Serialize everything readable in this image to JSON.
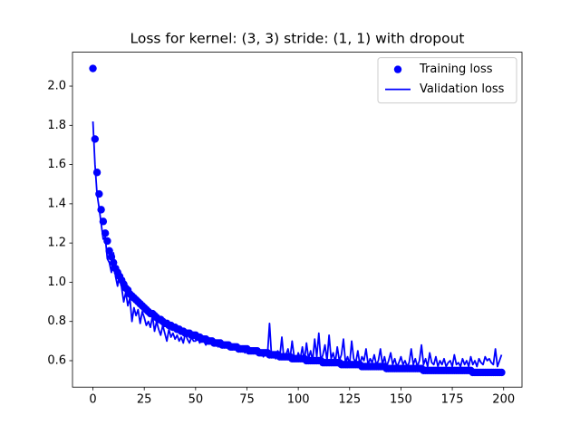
{
  "chart_data": {
    "type": "line",
    "title": "Loss for kernel: (3, 3) stride: (1, 1) with dropout",
    "x": [
      0,
      1,
      2,
      3,
      4,
      5,
      6,
      7,
      8,
      9,
      10,
      11,
      12,
      13,
      14,
      15,
      16,
      17,
      18,
      19,
      20,
      21,
      22,
      23,
      24,
      25,
      26,
      27,
      28,
      29,
      30,
      31,
      32,
      33,
      34,
      35,
      36,
      37,
      38,
      39,
      40,
      41,
      42,
      43,
      44,
      45,
      46,
      47,
      48,
      49,
      50,
      51,
      52,
      53,
      54,
      55,
      56,
      57,
      58,
      59,
      60,
      61,
      62,
      63,
      64,
      65,
      66,
      67,
      68,
      69,
      70,
      71,
      72,
      73,
      74,
      75,
      76,
      77,
      78,
      79,
      80,
      81,
      82,
      83,
      84,
      85,
      86,
      87,
      88,
      89,
      90,
      91,
      92,
      93,
      94,
      95,
      96,
      97,
      98,
      99,
      100,
      101,
      102,
      103,
      104,
      105,
      106,
      107,
      108,
      109,
      110,
      111,
      112,
      113,
      114,
      115,
      116,
      117,
      118,
      119,
      120,
      121,
      122,
      123,
      124,
      125,
      126,
      127,
      128,
      129,
      130,
      131,
      132,
      133,
      134,
      135,
      136,
      137,
      138,
      139,
      140,
      141,
      142,
      143,
      144,
      145,
      146,
      147,
      148,
      149,
      150,
      151,
      152,
      153,
      154,
      155,
      156,
      157,
      158,
      159,
      160,
      161,
      162,
      163,
      164,
      165,
      166,
      167,
      168,
      169,
      170,
      171,
      172,
      173,
      174,
      175,
      176,
      177,
      178,
      179,
      180,
      181,
      182,
      183,
      184,
      185,
      186,
      187,
      188,
      189,
      190,
      191,
      192,
      193,
      194,
      195,
      196,
      197,
      198,
      199
    ],
    "series": [
      {
        "name": "Training loss",
        "color": "#0000ff",
        "mode": "markers",
        "values": [
          2.09,
          1.73,
          1.56,
          1.45,
          1.37,
          1.31,
          1.25,
          1.21,
          1.16,
          1.13,
          1.1,
          1.07,
          1.05,
          1.03,
          1.01,
          0.99,
          0.97,
          0.96,
          0.94,
          0.93,
          0.92,
          0.91,
          0.9,
          0.89,
          0.88,
          0.87,
          0.86,
          0.85,
          0.84,
          0.84,
          0.83,
          0.82,
          0.81,
          0.81,
          0.8,
          0.79,
          0.79,
          0.78,
          0.78,
          0.77,
          0.77,
          0.76,
          0.76,
          0.75,
          0.75,
          0.74,
          0.74,
          0.74,
          0.73,
          0.73,
          0.73,
          0.72,
          0.72,
          0.71,
          0.71,
          0.71,
          0.7,
          0.7,
          0.7,
          0.69,
          0.69,
          0.69,
          0.69,
          0.68,
          0.68,
          0.68,
          0.68,
          0.67,
          0.67,
          0.67,
          0.67,
          0.66,
          0.66,
          0.66,
          0.66,
          0.66,
          0.65,
          0.65,
          0.65,
          0.65,
          0.65,
          0.64,
          0.64,
          0.64,
          0.64,
          0.64,
          0.63,
          0.63,
          0.63,
          0.63,
          0.63,
          0.62,
          0.62,
          0.62,
          0.62,
          0.62,
          0.62,
          0.61,
          0.61,
          0.61,
          0.61,
          0.61,
          0.61,
          0.61,
          0.6,
          0.6,
          0.6,
          0.6,
          0.6,
          0.6,
          0.6,
          0.6,
          0.59,
          0.59,
          0.59,
          0.59,
          0.59,
          0.59,
          0.59,
          0.59,
          0.59,
          0.58,
          0.58,
          0.58,
          0.58,
          0.58,
          0.58,
          0.58,
          0.58,
          0.58,
          0.58,
          0.57,
          0.57,
          0.57,
          0.57,
          0.57,
          0.57,
          0.57,
          0.57,
          0.57,
          0.57,
          0.57,
          0.57,
          0.56,
          0.56,
          0.56,
          0.56,
          0.56,
          0.56,
          0.56,
          0.56,
          0.56,
          0.56,
          0.56,
          0.56,
          0.56,
          0.56,
          0.56,
          0.56,
          0.56,
          0.56,
          0.55,
          0.55,
          0.55,
          0.55,
          0.55,
          0.55,
          0.55,
          0.55,
          0.55,
          0.55,
          0.55,
          0.55,
          0.55,
          0.55,
          0.55,
          0.55,
          0.55,
          0.55,
          0.55,
          0.55,
          0.55,
          0.55,
          0.55,
          0.55,
          0.54,
          0.54,
          0.54,
          0.54,
          0.54,
          0.54,
          0.54,
          0.54,
          0.54,
          0.54,
          0.54,
          0.54,
          0.54,
          0.54,
          0.54
        ]
      },
      {
        "name": "Validation loss",
        "color": "#0000ff",
        "mode": "line",
        "values": [
          1.82,
          1.6,
          1.45,
          1.38,
          1.3,
          1.22,
          1.23,
          1.12,
          1.1,
          1.05,
          1.15,
          1.03,
          0.98,
          1.05,
          0.97,
          0.9,
          0.95,
          0.88,
          0.92,
          0.8,
          0.87,
          0.83,
          0.86,
          0.79,
          0.85,
          0.82,
          0.78,
          0.8,
          0.77,
          0.83,
          0.75,
          0.8,
          0.76,
          0.73,
          0.78,
          0.74,
          0.7,
          0.76,
          0.72,
          0.74,
          0.71,
          0.73,
          0.7,
          0.72,
          0.69,
          0.74,
          0.71,
          0.69,
          0.72,
          0.7,
          0.7,
          0.72,
          0.69,
          0.71,
          0.7,
          0.68,
          0.71,
          0.69,
          0.7,
          0.68,
          0.69,
          0.67,
          0.7,
          0.68,
          0.67,
          0.69,
          0.66,
          0.68,
          0.67,
          0.66,
          0.68,
          0.65,
          0.67,
          0.66,
          0.64,
          0.67,
          0.65,
          0.66,
          0.64,
          0.66,
          0.64,
          0.63,
          0.65,
          0.62,
          0.64,
          0.63,
          0.79,
          0.62,
          0.64,
          0.61,
          0.65,
          0.62,
          0.72,
          0.61,
          0.63,
          0.66,
          0.61,
          0.7,
          0.62,
          0.6,
          0.64,
          0.61,
          0.67,
          0.6,
          0.69,
          0.61,
          0.65,
          0.6,
          0.71,
          0.62,
          0.74,
          0.6,
          0.63,
          0.68,
          0.6,
          0.73,
          0.61,
          0.64,
          0.59,
          0.67,
          0.6,
          0.63,
          0.71,
          0.59,
          0.62,
          0.58,
          0.7,
          0.61,
          0.59,
          0.65,
          0.58,
          0.62,
          0.6,
          0.66,
          0.58,
          0.61,
          0.59,
          0.63,
          0.58,
          0.6,
          0.66,
          0.58,
          0.62,
          0.57,
          0.6,
          0.64,
          0.58,
          0.61,
          0.57,
          0.59,
          0.62,
          0.58,
          0.6,
          0.57,
          0.59,
          0.66,
          0.58,
          0.61,
          0.57,
          0.6,
          0.68,
          0.58,
          0.61,
          0.57,
          0.64,
          0.59,
          0.58,
          0.62,
          0.57,
          0.6,
          0.58,
          0.61,
          0.57,
          0.59,
          0.6,
          0.57,
          0.63,
          0.58,
          0.59,
          0.57,
          0.61,
          0.58,
          0.6,
          0.57,
          0.62,
          0.58,
          0.6,
          0.57,
          0.61,
          0.59,
          0.58,
          0.62,
          0.6,
          0.61,
          0.59,
          0.58,
          0.66,
          0.57,
          0.6,
          0.63
        ]
      }
    ],
    "xlim": [
      -9.95,
      208.95
    ],
    "xticks": [
      0,
      25,
      50,
      75,
      100,
      125,
      150,
      175,
      200
    ],
    "ylim": [
      0.465,
      2.173
    ],
    "yticks": [
      {
        "value": 0.6,
        "label": "0.6"
      },
      {
        "value": 0.8,
        "label": "0.8"
      },
      {
        "value": 1.0,
        "label": "1.0"
      },
      {
        "value": 1.2,
        "label": "1.2"
      },
      {
        "value": 1.4,
        "label": "1.4"
      },
      {
        "value": 1.6,
        "label": "1.6"
      },
      {
        "value": 1.8,
        "label": "1.8"
      },
      {
        "value": 2.0,
        "label": "2.0"
      }
    ],
    "legend": "upper right",
    "grid": false
  }
}
